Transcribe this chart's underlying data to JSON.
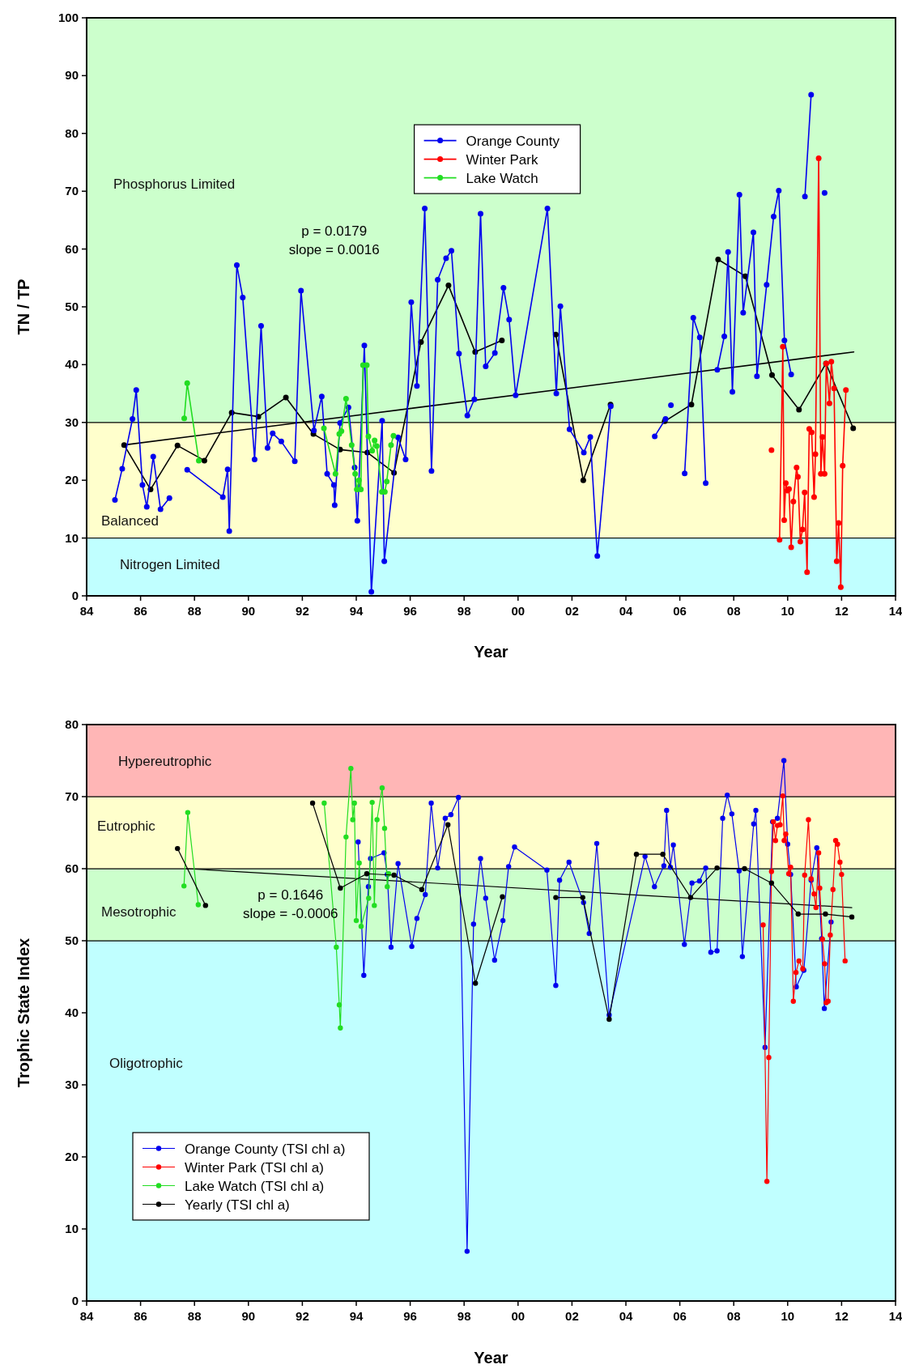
{
  "chart_data": [
    {
      "type": "line",
      "xlabel": "Year",
      "ylabel": "TN / TP",
      "xlim": [
        1984,
        2014
      ],
      "ylim": [
        0,
        100
      ],
      "xticks": [
        {
          "value": 1984,
          "label": "84"
        },
        {
          "value": 1986,
          "label": "86"
        },
        {
          "value": 1988,
          "label": "88"
        },
        {
          "value": 1990,
          "label": "90"
        },
        {
          "value": 1992,
          "label": "92"
        },
        {
          "value": 1994,
          "label": "94"
        },
        {
          "value": 1996,
          "label": "96"
        },
        {
          "value": 1998,
          "label": "98"
        },
        {
          "value": 2000,
          "label": "00"
        },
        {
          "value": 2002,
          "label": "02"
        },
        {
          "value": 2004,
          "label": "04"
        },
        {
          "value": 2006,
          "label": "06"
        },
        {
          "value": 2008,
          "label": "08"
        },
        {
          "value": 2010,
          "label": "10"
        },
        {
          "value": 2012,
          "label": "12"
        },
        {
          "value": 2014,
          "label": "14"
        }
      ],
      "yticks": [
        0,
        10,
        20,
        30,
        40,
        50,
        60,
        70,
        80,
        90,
        100
      ],
      "legend": "top",
      "marker": "circle",
      "line_style": "solid",
      "annotations": [
        "p = 0.0179",
        "slope = 0.0016"
      ],
      "bands": [
        {
          "axis": "y",
          "from": 0,
          "to": 10,
          "label": "Nitrogen Limited",
          "color": "#c0ffff"
        },
        {
          "axis": "y",
          "from": 10,
          "to": 30,
          "label": "Balanced",
          "color": "#ffffcc"
        },
        {
          "axis": "y",
          "from": 30,
          "to": 100,
          "label": "Phosphorus Limited",
          "color": "#ccffcc"
        }
      ],
      "series": [
        {
          "name": "Orange County",
          "color": "#0000ee",
          "x": [
            1985.05,
            1985.32,
            1985.7,
            1985.84,
            1986.07,
            1986.23,
            1986.47,
            1986.74,
            1987.07,
            1987.4,
            1987.73,
            1989.05,
            1989.23,
            1989.29,
            1989.57,
            1989.79,
            1990.23,
            1990.47,
            1990.71,
            1990.9,
            1991.22,
            1991.72,
            1991.95,
            1992.43,
            1992.72,
            1992.92,
            1993.17,
            1993.2,
            1993.4,
            1993.71,
            1993.94,
            1994.04,
            1994.3,
            1994.56,
            1994.96,
            1995.04,
            1995.55,
            1995.83,
            1996.04,
            1996.25,
            1996.54,
            1996.79,
            1997.02,
            1997.33,
            1997.53,
            1997.81,
            1998.12,
            1998.38,
            1998.61,
            1998.8,
            1999.14,
            1999.46,
            1999.67,
            1999.91,
            2001.09,
            2001.42,
            2001.57,
            2001.91,
            2002.44,
            2002.68,
            2002.94,
            2003.44,
            2004.2,
            2005.07,
            2005.47,
            2005.57,
            2005.67,
            2005.9,
            2006.18,
            2006.5,
            2006.74,
            2006.96,
            2007.2,
            2007.39,
            2007.65,
            2007.79,
            2007.95,
            2008.21,
            2008.35,
            2008.73,
            2008.86,
            2009.22,
            2009.48,
            2009.67,
            2009.88,
            2010.13,
            2010.4,
            2010.64,
            2010.87,
            2011.1,
            2011.37
          ],
          "values": [
            16.6,
            22,
            30.6,
            35.6,
            19.2,
            15.4,
            24.1,
            15,
            16.9,
            null,
            21.8,
            17.1,
            21.9,
            11.2,
            57.2,
            51.6,
            23.6,
            46.7,
            25.6,
            28.1,
            26.7,
            23.3,
            52.8,
            28.6,
            34.5,
            21.1,
            19.2,
            15.7,
            29.9,
            32.6,
            22.2,
            13,
            43.3,
            0.7,
            30.3,
            6,
            27.4,
            23.6,
            50.8,
            36.3,
            67,
            21.6,
            54.7,
            58.4,
            59.7,
            41.9,
            31.2,
            34,
            66.1,
            39.7,
            42,
            53.3,
            47.8,
            34.7,
            67,
            35,
            50.1,
            28.8,
            24.8,
            27.5,
            6.9,
            32.8,
            null,
            27.6,
            30.6,
            null,
            33,
            null,
            21.2,
            48.1,
            44.7,
            19.5,
            null,
            39.1,
            44.9,
            59.5,
            35.3,
            69.4,
            49,
            62.9,
            38,
            53.8,
            65.6,
            70.1,
            44.2,
            38.3,
            null,
            69.1,
            86.7,
            null,
            69.7
          ]
        },
        {
          "name": "Winter Park",
          "color": "#ff0000",
          "x": [
            2009.4,
            2009.55,
            2009.7,
            2009.82,
            2009.87,
            2009.93,
            2009.99,
            2010.05,
            2010.13,
            2010.21,
            2010.33,
            2010.38,
            2010.47,
            2010.55,
            2010.63,
            2010.72,
            2010.8,
            2010.89,
            2010.98,
            2011.03,
            2011.15,
            2011.23,
            2011.29,
            2011.37,
            2011.43,
            2011.55,
            2011.62,
            2011.72,
            2011.82,
            2011.89,
            2011.97,
            2012.04,
            2012.16
          ],
          "values": [
            25.2,
            null,
            9.7,
            43.1,
            13.1,
            19.5,
            18.2,
            18.5,
            8.4,
            16.3,
            22.2,
            20.6,
            9.4,
            11.5,
            17.9,
            4.1,
            28.9,
            28.3,
            17.1,
            24.5,
            75.7,
            21.1,
            27.5,
            21.1,
            40.2,
            33.3,
            40.5,
            35.9,
            6,
            12.6,
            1.5,
            22.5,
            35.6
          ]
        },
        {
          "name": "Lake Watch",
          "color": "#22dd22",
          "x": [
            1987.62,
            1987.73,
            1988.16,
            1990.5,
            1992.8,
            1993.23,
            1993.37,
            1993.45,
            1993.62,
            1993.83,
            1993.96,
            1994.02,
            1994.1,
            1994.17,
            1994.25,
            1994.39,
            1994.45,
            1994.59,
            1994.68,
            1994.76,
            1994.95,
            1995.06,
            1995.13,
            1995.29,
            1995.38
          ],
          "values": [
            30.7,
            36.8,
            23.4,
            null,
            29,
            21.1,
            28,
            28.5,
            34.1,
            26.1,
            21.1,
            18.4,
            20,
            18.4,
            39.9,
            39.9,
            27.6,
            25.1,
            26.9,
            25.9,
            18,
            18,
            19.8,
            26.1,
            27.7
          ]
        },
        {
          "color": "#000000",
          "x": [
            1985.39,
            1986.37,
            1987.37,
            1988.37,
            1989.38,
            1990.37,
            1991.39,
            1992.41,
            1993.4,
            1994.41,
            1995.4,
            1996.4,
            1997.42,
            1998.41,
            1999.4,
            2000.4,
            2001.4,
            2002.42,
            2003.43,
            2004.4,
            2005.44,
            2006.43,
            2007.42,
            2008.43,
            2009.42,
            2010.42,
            2011.42,
            2012.43
          ],
          "values": [
            26.1,
            18.4,
            26,
            23.4,
            31.7,
            31,
            34.3,
            28,
            25.3,
            24.8,
            21.3,
            43.9,
            53.7,
            42.2,
            44.2,
            null,
            45.2,
            20,
            33.1,
            null,
            30.2,
            33.1,
            58.2,
            55.3,
            38.2,
            32.2,
            40.2,
            29
          ]
        },
        {
          "type": "line",
          "color": "#000000",
          "marker": "none",
          "x": [
            1985.39,
            2012.45
          ],
          "values": [
            26.1,
            42.2
          ]
        }
      ]
    },
    {
      "type": "line",
      "xlabel": "Year",
      "ylabel": "Trophic State Index",
      "xlim": [
        1984,
        2014
      ],
      "ylim": [
        0,
        80
      ],
      "xticks": [
        {
          "value": 1984,
          "label": "84"
        },
        {
          "value": 1986,
          "label": "86"
        },
        {
          "value": 1988,
          "label": "88"
        },
        {
          "value": 1990,
          "label": "90"
        },
        {
          "value": 1992,
          "label": "92"
        },
        {
          "value": 1994,
          "label": "94"
        },
        {
          "value": 1996,
          "label": "96"
        },
        {
          "value": 1998,
          "label": "98"
        },
        {
          "value": 2000,
          "label": "00"
        },
        {
          "value": 2002,
          "label": "02"
        },
        {
          "value": 2004,
          "label": "04"
        },
        {
          "value": 2006,
          "label": "06"
        },
        {
          "value": 2008,
          "label": "08"
        },
        {
          "value": 2010,
          "label": "10"
        },
        {
          "value": 2012,
          "label": "12"
        },
        {
          "value": 2014,
          "label": "14"
        }
      ],
      "yticks": [
        0,
        10,
        20,
        30,
        40,
        50,
        60,
        70,
        80
      ],
      "legend": "bottom left",
      "marker": "circle",
      "line_style": "solid",
      "annotations": [
        "p = 0.1646",
        "slope = -0.0006"
      ],
      "bands": [
        {
          "axis": "y",
          "from": 0,
          "to": 50,
          "label": "Oligotrophic",
          "color": "#c0ffff"
        },
        {
          "axis": "y",
          "from": 50,
          "to": 60,
          "label": "Mesotrophic",
          "color": "#ccffcc"
        },
        {
          "axis": "y",
          "from": 60,
          "to": 70,
          "label": "Eutrophic",
          "color": "#ffffcc"
        },
        {
          "axis": "y",
          "from": 70,
          "to": 80,
          "label": "Hypereutrophic",
          "color": "#ffb6b6"
        }
      ],
      "series": [
        {
          "name": "Orange County (TSI chl a)",
          "color": "#0000ee",
          "x": [
            1994.07,
            1994.28,
            1994.45,
            1994.53,
            1995.03,
            1995.15,
            1995.29,
            1995.55,
            1996.06,
            1996.25,
            1996.56,
            1996.78,
            1997.02,
            1997.3,
            1997.51,
            1997.79,
            1998.11,
            1998.35,
            1998.61,
            1998.8,
            1999.13,
            1999.44,
            1999.65,
            1999.87,
            2001.07,
            2001.4,
            2001.54,
            2001.89,
            2002.43,
            2002.64,
            2002.92,
            2003.38,
            2004.71,
            2005.06,
            2005.41,
            2005.51,
            2005.65,
            2005.76,
            2006.17,
            2006.45,
            2006.73,
            2006.96,
            2007.15,
            2007.38,
            2007.59,
            2007.76,
            2007.93,
            2008.2,
            2008.32,
            2008.74,
            2008.82,
            2009.16,
            2009.44,
            2009.62,
            2009.86,
            2010,
            2010.11,
            2010.32,
            2010.6,
            2010.87,
            2011.08,
            2011.26,
            2011.36,
            2011.61
          ],
          "values": [
            63.7,
            45.2,
            57.5,
            61.4,
            62.2,
            59.2,
            49.1,
            60.7,
            49.2,
            53.1,
            56.4,
            69.1,
            60.1,
            67,
            67.5,
            69.9,
            6.9,
            52.3,
            61.4,
            55.9,
            47.3,
            52.8,
            60.3,
            63,
            59.8,
            43.8,
            58.4,
            60.9,
            55.3,
            51,
            63.5,
            39.7,
            61.7,
            57.5,
            60.4,
            68.1,
            60.2,
            63.3,
            49.5,
            58,
            58.3,
            60.1,
            48.4,
            48.6,
            67,
            70.2,
            67.6,
            59.7,
            47.8,
            66.2,
            68.1,
            35.2,
            66.5,
            67,
            75,
            63.4,
            59.2,
            43.6,
            45.9,
            58.4,
            62.9,
            50.3,
            40.6,
            52.6
          ]
        },
        {
          "name": "Winter Park (TSI chl a)",
          "color": "#ff0000",
          "x": [
            2009.09,
            2009.23,
            2009.3,
            2009.4,
            2009.47,
            2009.55,
            2009.62,
            2009.72,
            2009.82,
            2009.87,
            2009.93,
            2010.04,
            2010.11,
            2010.21,
            2010.31,
            2010.42,
            2010.56,
            2010.63,
            2010.77,
            2010.87,
            2010.98,
            2011.05,
            2011.15,
            2011.19,
            2011.29,
            2011.37,
            2011.43,
            2011.5,
            2011.58,
            2011.68,
            2011.78,
            2011.85,
            2011.94,
            2012,
            2012.13
          ],
          "values": [
            52.2,
            16.6,
            33.8,
            59.6,
            66.5,
            63.9,
            66,
            66.1,
            70.1,
            63.9,
            64.8,
            59.3,
            60.2,
            41.6,
            45.6,
            47.2,
            46.1,
            59.1,
            66.8,
            58.6,
            56.5,
            54.6,
            62.2,
            57.3,
            50.2,
            46.8,
            41.4,
            41.6,
            50.8,
            57.1,
            63.9,
            63.4,
            60.9,
            59.2,
            47.2
          ]
        },
        {
          "name": "Lake Watch (TSI chl a)",
          "color": "#22dd22",
          "x": [
            1987.61,
            1987.75,
            1988.14,
            1990.5,
            1992.81,
            1993.26,
            1993.37,
            1993.41,
            1993.62,
            1993.8,
            1993.87,
            1993.93,
            1994,
            1994.11,
            1994.18,
            1994.46,
            1994.59,
            1994.67,
            1994.77,
            1994.96,
            1995.05,
            1995.15,
            1995.2
          ],
          "values": [
            57.6,
            67.8,
            55,
            null,
            69.1,
            49.1,
            41.1,
            37.9,
            64.4,
            73.9,
            66.8,
            69.1,
            52.8,
            60.8,
            52,
            55.9,
            69.2,
            54.9,
            66.8,
            71.2,
            65.6,
            57.5,
            59.3
          ]
        },
        {
          "name": "Yearly (TSI chl a)",
          "color": "#000000",
          "x": [
            1987.37,
            1988.41,
            1990.4,
            1992.38,
            1993.41,
            1994.39,
            1995.4,
            1996.43,
            1997.4,
            1998.42,
            1999.42,
            2000.4,
            2001.4,
            2002.4,
            2003.38,
            2004.39,
            2005.37,
            2006.4,
            2007.38,
            2008.4,
            2009.4,
            2010.39,
            2011.4,
            2012.38
          ],
          "values": [
            62.8,
            54.9,
            null,
            69.1,
            57.3,
            59.3,
            59.1,
            57.1,
            66.1,
            44.1,
            56.1,
            null,
            56,
            56,
            39.1,
            62,
            62,
            56,
            60.1,
            60,
            58,
            53.7,
            53.7,
            53.3
          ]
        },
        {
          "type": "line",
          "color": "#000000",
          "marker": "none",
          "x": [
            1987.7,
            2012.38
          ],
          "values": [
            60,
            54.6
          ]
        }
      ]
    }
  ]
}
